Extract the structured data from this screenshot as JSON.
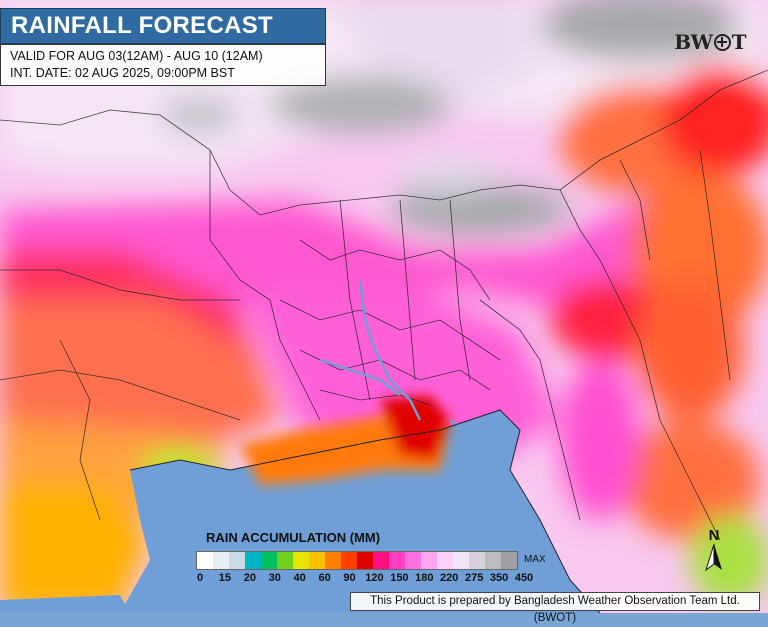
{
  "title": "RAINFALL FORECAST",
  "info": {
    "valid": "VALID FOR AUG 03(12AM) - AUG 10 (12AM)",
    "init": "INT. DATE: 02 AUG 2025, 09:00PM BST"
  },
  "logo": {
    "left": "BW",
    "right": "T"
  },
  "legend": {
    "title": "RAIN ACCUMULATION (MM)",
    "max_label": "MAX",
    "ticks": [
      "0",
      "15",
      "20",
      "30",
      "40",
      "60",
      "90",
      "120",
      "150",
      "180",
      "220",
      "275",
      "350",
      "450"
    ],
    "colors": [
      "#ffffff",
      "#e6eef4",
      "#c8dce6",
      "#00b4c8",
      "#00c060",
      "#70d020",
      "#e6e600",
      "#ffc000",
      "#ff8000",
      "#ff4000",
      "#e00000",
      "#ff1080",
      "#ff40c0",
      "#ff70e0",
      "#ffa8f0",
      "#ffd0f8",
      "#f0e4f4",
      "#d8d0dc",
      "#bcbcc0",
      "#a0a0a4"
    ]
  },
  "north_label": "N",
  "credit": "This Product is prepared by Bangladesh Weather Observation Team Ltd. (BWOT)"
}
